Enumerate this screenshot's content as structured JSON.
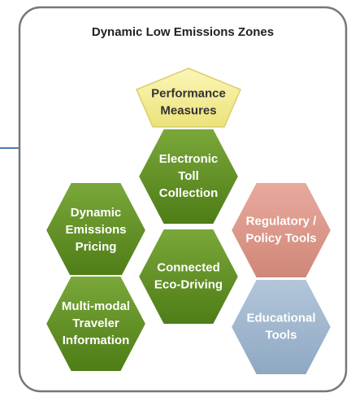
{
  "title": "Dynamic Low Emissions Zones",
  "nodes": [
    {
      "lines": [
        "Performance",
        "Measures"
      ]
    },
    {
      "lines": [
        "Electronic",
        "Toll",
        "Collection"
      ]
    },
    {
      "lines": [
        "Dynamic",
        "Emissions",
        "Pricing"
      ]
    },
    {
      "lines": [
        "Regulatory /",
        "Policy Tools"
      ]
    },
    {
      "lines": [
        "Connected",
        "Eco-Driving"
      ]
    },
    {
      "lines": [
        "Multi-modal",
        "Traveler",
        "Information"
      ]
    },
    {
      "lines": [
        "Educational",
        "Tools"
      ]
    }
  ]
}
